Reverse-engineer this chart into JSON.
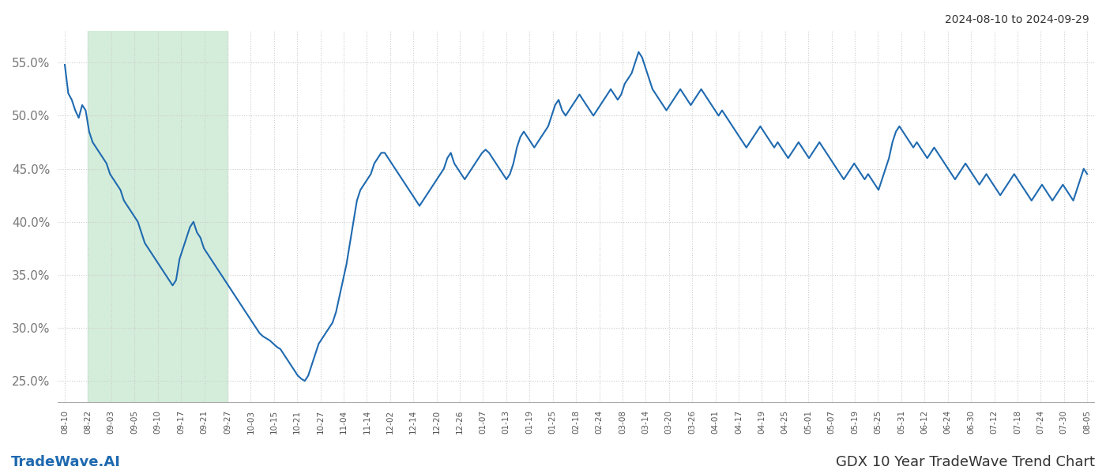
{
  "title_right": "2024-08-10 to 2024-09-29",
  "bottom_left": "TradeWave.AI",
  "bottom_right": "GDX 10 Year TradeWave Trend Chart",
  "line_color": "#1f6ab0",
  "line_width": 1.5,
  "bg_color": "#ffffff",
  "grid_color": "#cccccc",
  "shade_color": "#d4edda",
  "ylim": [
    23.0,
    58.0
  ],
  "yticks": [
    25.0,
    30.0,
    35.0,
    40.0,
    45.0,
    50.0,
    55.0
  ],
  "x_labels": [
    "08-10",
    "08-22",
    "09-03",
    "09-05",
    "09-10",
    "09-17",
    "09-21",
    "09-27",
    "10-03",
    "10-15",
    "10-21",
    "10-27",
    "11-04",
    "11-14",
    "12-02",
    "12-14",
    "12-20",
    "12-26",
    "01-07",
    "01-13",
    "01-19",
    "01-25",
    "02-18",
    "02-24",
    "03-08",
    "03-14",
    "03-20",
    "03-26",
    "04-01",
    "04-17",
    "04-19",
    "04-25",
    "05-01",
    "05-07",
    "05-19",
    "05-25",
    "05-31",
    "06-12",
    "06-24",
    "06-30",
    "07-12",
    "07-18",
    "07-24",
    "07-30",
    "08-05"
  ],
  "shade_start_label": "08-22",
  "shade_end_label": "09-27",
  "values": [
    54.8,
    52.1,
    51.5,
    50.5,
    49.8,
    51.0,
    50.5,
    48.5,
    47.5,
    47.0,
    46.5,
    46.0,
    45.5,
    44.5,
    44.0,
    43.5,
    43.0,
    42.0,
    41.5,
    41.0,
    40.5,
    40.0,
    39.0,
    38.0,
    37.5,
    37.0,
    36.5,
    36.0,
    35.5,
    35.0,
    34.5,
    34.0,
    34.5,
    36.5,
    37.5,
    38.5,
    39.5,
    40.0,
    39.0,
    38.5,
    37.5,
    37.0,
    36.5,
    36.0,
    35.5,
    35.0,
    34.5,
    34.0,
    33.5,
    33.0,
    32.5,
    32.0,
    31.5,
    31.0,
    30.5,
    30.0,
    29.5,
    29.2,
    29.0,
    28.8,
    28.5,
    28.2,
    28.0,
    27.5,
    27.0,
    26.5,
    26.0,
    25.5,
    25.2,
    25.0,
    25.5,
    26.5,
    27.5,
    28.5,
    29.0,
    29.5,
    30.0,
    30.5,
    31.5,
    33.0,
    34.5,
    36.0,
    38.0,
    40.0,
    42.0,
    43.0,
    43.5,
    44.0,
    44.5,
    45.5,
    46.0,
    46.5,
    46.5,
    46.0,
    45.5,
    45.0,
    44.5,
    44.0,
    43.5,
    43.0,
    42.5,
    42.0,
    41.5,
    42.0,
    42.5,
    43.0,
    43.5,
    44.0,
    44.5,
    45.0,
    46.0,
    46.5,
    45.5,
    45.0,
    44.5,
    44.0,
    44.5,
    45.0,
    45.5,
    46.0,
    46.5,
    46.8,
    46.5,
    46.0,
    45.5,
    45.0,
    44.5,
    44.0,
    44.5,
    45.5,
    47.0,
    48.0,
    48.5,
    48.0,
    47.5,
    47.0,
    47.5,
    48.0,
    48.5,
    49.0,
    50.0,
    51.0,
    51.5,
    50.5,
    50.0,
    50.5,
    51.0,
    51.5,
    52.0,
    51.5,
    51.0,
    50.5,
    50.0,
    50.5,
    51.0,
    51.5,
    52.0,
    52.5,
    52.0,
    51.5,
    52.0,
    53.0,
    53.5,
    54.0,
    55.0,
    56.0,
    55.5,
    54.5,
    53.5,
    52.5,
    52.0,
    51.5,
    51.0,
    50.5,
    51.0,
    51.5,
    52.0,
    52.5,
    52.0,
    51.5,
    51.0,
    51.5,
    52.0,
    52.5,
    52.0,
    51.5,
    51.0,
    50.5,
    50.0,
    50.5,
    50.0,
    49.5,
    49.0,
    48.5,
    48.0,
    47.5,
    47.0,
    47.5,
    48.0,
    48.5,
    49.0,
    48.5,
    48.0,
    47.5,
    47.0,
    47.5,
    47.0,
    46.5,
    46.0,
    46.5,
    47.0,
    47.5,
    47.0,
    46.5,
    46.0,
    46.5,
    47.0,
    47.5,
    47.0,
    46.5,
    46.0,
    45.5,
    45.0,
    44.5,
    44.0,
    44.5,
    45.0,
    45.5,
    45.0,
    44.5,
    44.0,
    44.5,
    44.0,
    43.5,
    43.0,
    44.0,
    45.0,
    46.0,
    47.5,
    48.5,
    49.0,
    48.5,
    48.0,
    47.5,
    47.0,
    47.5,
    47.0,
    46.5,
    46.0,
    46.5,
    47.0,
    46.5,
    46.0,
    45.5,
    45.0,
    44.5,
    44.0,
    44.5,
    45.0,
    45.5,
    45.0,
    44.5,
    44.0,
    43.5,
    44.0,
    44.5,
    44.0,
    43.5,
    43.0,
    42.5,
    43.0,
    43.5,
    44.0,
    44.5,
    44.0,
    43.5,
    43.0,
    42.5,
    42.0,
    42.5,
    43.0,
    43.5,
    43.0,
    42.5,
    42.0,
    42.5,
    43.0,
    43.5,
    43.0,
    42.5,
    42.0,
    43.0,
    44.0,
    45.0,
    44.5
  ]
}
